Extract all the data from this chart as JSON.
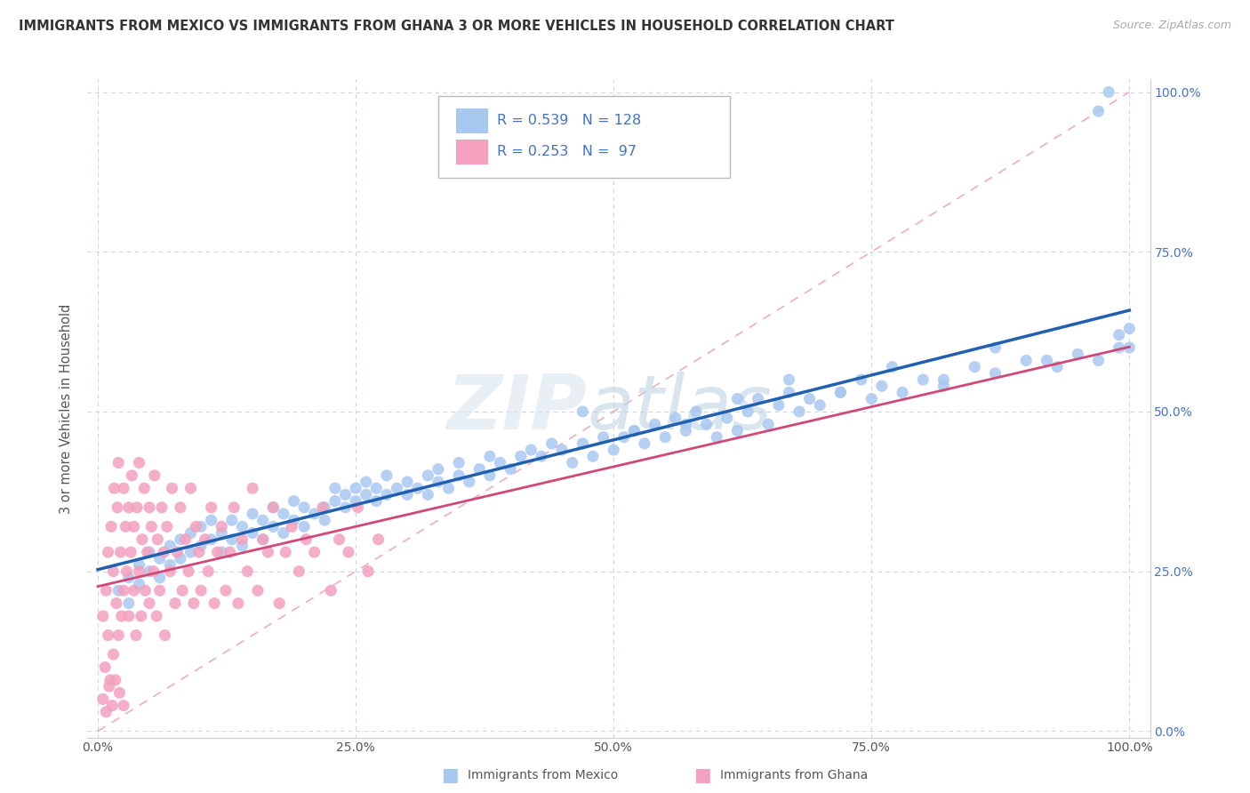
{
  "title": "IMMIGRANTS FROM MEXICO VS IMMIGRANTS FROM GHANA 3 OR MORE VEHICLES IN HOUSEHOLD CORRELATION CHART",
  "source": "Source: ZipAtlas.com",
  "ylabel": "3 or more Vehicles in Household",
  "mexico_color": "#a8c8f0",
  "ghana_color": "#f4a0be",
  "mexico_line_color": "#2060b0",
  "ghana_line_color": "#d04878",
  "diagonal_color": "#e8a0b8",
  "grid_color": "#c8d4e8",
  "right_tick_color": "#4472c4",
  "R_mexico": 0.539,
  "N_mexico": 128,
  "R_ghana": 0.253,
  "N_ghana": 97,
  "xlim": [
    -0.01,
    1.02
  ],
  "ylim": [
    -0.01,
    1.02
  ],
  "xticks": [
    0.0,
    0.25,
    0.5,
    0.75,
    1.0
  ],
  "yticks": [
    0.0,
    0.25,
    0.5,
    0.75,
    1.0
  ],
  "xtick_labels": [
    "0.0%",
    "25.0%",
    "50.0%",
    "75.0%",
    "100.0%"
  ],
  "ytick_labels": [
    "0.0%",
    "25.0%",
    "50.0%",
    "75.0%",
    "100.0%"
  ],
  "mexico_x": [
    0.02,
    0.03,
    0.03,
    0.04,
    0.04,
    0.05,
    0.05,
    0.06,
    0.06,
    0.07,
    0.07,
    0.08,
    0.08,
    0.09,
    0.09,
    0.1,
    0.1,
    0.11,
    0.11,
    0.12,
    0.12,
    0.13,
    0.13,
    0.14,
    0.14,
    0.15,
    0.15,
    0.16,
    0.16,
    0.17,
    0.17,
    0.18,
    0.18,
    0.19,
    0.19,
    0.2,
    0.2,
    0.21,
    0.22,
    0.22,
    0.23,
    0.23,
    0.24,
    0.24,
    0.25,
    0.25,
    0.26,
    0.26,
    0.27,
    0.27,
    0.28,
    0.28,
    0.29,
    0.3,
    0.3,
    0.31,
    0.32,
    0.32,
    0.33,
    0.33,
    0.34,
    0.35,
    0.35,
    0.36,
    0.37,
    0.38,
    0.38,
    0.39,
    0.4,
    0.41,
    0.42,
    0.43,
    0.44,
    0.45,
    0.46,
    0.47,
    0.48,
    0.49,
    0.5,
    0.51,
    0.52,
    0.53,
    0.54,
    0.55,
    0.56,
    0.57,
    0.58,
    0.59,
    0.6,
    0.61,
    0.62,
    0.63,
    0.64,
    0.65,
    0.66,
    0.67,
    0.68,
    0.69,
    0.7,
    0.72,
    0.74,
    0.75,
    0.76,
    0.78,
    0.8,
    0.82,
    0.85,
    0.87,
    0.9,
    0.93,
    0.95,
    0.97,
    0.99,
    0.47,
    0.52,
    0.57,
    0.62,
    0.67,
    0.72,
    0.77,
    0.82,
    0.87,
    0.92,
    0.97,
    0.98,
    0.99,
    1.0,
    1.0
  ],
  "mexico_y": [
    0.22,
    0.2,
    0.24,
    0.23,
    0.26,
    0.25,
    0.28,
    0.24,
    0.27,
    0.26,
    0.29,
    0.27,
    0.3,
    0.28,
    0.31,
    0.29,
    0.32,
    0.3,
    0.33,
    0.28,
    0.31,
    0.3,
    0.33,
    0.29,
    0.32,
    0.31,
    0.34,
    0.3,
    0.33,
    0.32,
    0.35,
    0.31,
    0.34,
    0.33,
    0.36,
    0.32,
    0.35,
    0.34,
    0.35,
    0.33,
    0.36,
    0.38,
    0.35,
    0.37,
    0.36,
    0.38,
    0.37,
    0.39,
    0.36,
    0.38,
    0.37,
    0.4,
    0.38,
    0.37,
    0.39,
    0.38,
    0.4,
    0.37,
    0.39,
    0.41,
    0.38,
    0.4,
    0.42,
    0.39,
    0.41,
    0.4,
    0.43,
    0.42,
    0.41,
    0.43,
    0.44,
    0.43,
    0.45,
    0.44,
    0.42,
    0.45,
    0.43,
    0.46,
    0.44,
    0.46,
    0.47,
    0.45,
    0.48,
    0.46,
    0.49,
    0.47,
    0.5,
    0.48,
    0.46,
    0.49,
    0.47,
    0.5,
    0.52,
    0.48,
    0.51,
    0.53,
    0.5,
    0.52,
    0.51,
    0.53,
    0.55,
    0.52,
    0.54,
    0.53,
    0.55,
    0.54,
    0.57,
    0.56,
    0.58,
    0.57,
    0.59,
    0.58,
    0.6,
    0.5,
    0.47,
    0.48,
    0.52,
    0.55,
    0.53,
    0.57,
    0.55,
    0.6,
    0.58,
    0.97,
    1.0,
    0.62,
    0.6,
    0.63
  ],
  "ghana_x": [
    0.005,
    0.007,
    0.008,
    0.01,
    0.01,
    0.012,
    0.013,
    0.015,
    0.015,
    0.016,
    0.018,
    0.019,
    0.02,
    0.02,
    0.022,
    0.023,
    0.025,
    0.025,
    0.027,
    0.028,
    0.03,
    0.03,
    0.032,
    0.033,
    0.035,
    0.035,
    0.037,
    0.038,
    0.04,
    0.04,
    0.042,
    0.043,
    0.045,
    0.046,
    0.048,
    0.05,
    0.05,
    0.052,
    0.054,
    0.055,
    0.057,
    0.058,
    0.06,
    0.062,
    0.064,
    0.065,
    0.067,
    0.07,
    0.072,
    0.075,
    0.077,
    0.08,
    0.082,
    0.085,
    0.088,
    0.09,
    0.093,
    0.095,
    0.098,
    0.1,
    0.104,
    0.107,
    0.11,
    0.113,
    0.116,
    0.12,
    0.124,
    0.128,
    0.132,
    0.136,
    0.14,
    0.145,
    0.15,
    0.155,
    0.16,
    0.165,
    0.17,
    0.176,
    0.182,
    0.188,
    0.195,
    0.202,
    0.21,
    0.218,
    0.226,
    0.234,
    0.243,
    0.252,
    0.262,
    0.272,
    0.005,
    0.008,
    0.011,
    0.014,
    0.017,
    0.021,
    0.025
  ],
  "ghana_y": [
    0.18,
    0.1,
    0.22,
    0.15,
    0.28,
    0.08,
    0.32,
    0.12,
    0.25,
    0.38,
    0.2,
    0.35,
    0.15,
    0.42,
    0.28,
    0.18,
    0.38,
    0.22,
    0.32,
    0.25,
    0.35,
    0.18,
    0.28,
    0.4,
    0.22,
    0.32,
    0.15,
    0.35,
    0.25,
    0.42,
    0.18,
    0.3,
    0.38,
    0.22,
    0.28,
    0.35,
    0.2,
    0.32,
    0.25,
    0.4,
    0.18,
    0.3,
    0.22,
    0.35,
    0.28,
    0.15,
    0.32,
    0.25,
    0.38,
    0.2,
    0.28,
    0.35,
    0.22,
    0.3,
    0.25,
    0.38,
    0.2,
    0.32,
    0.28,
    0.22,
    0.3,
    0.25,
    0.35,
    0.2,
    0.28,
    0.32,
    0.22,
    0.28,
    0.35,
    0.2,
    0.3,
    0.25,
    0.38,
    0.22,
    0.3,
    0.28,
    0.35,
    0.2,
    0.28,
    0.32,
    0.25,
    0.3,
    0.28,
    0.35,
    0.22,
    0.3,
    0.28,
    0.35,
    0.25,
    0.3,
    0.05,
    0.03,
    0.07,
    0.04,
    0.08,
    0.06,
    0.04
  ]
}
